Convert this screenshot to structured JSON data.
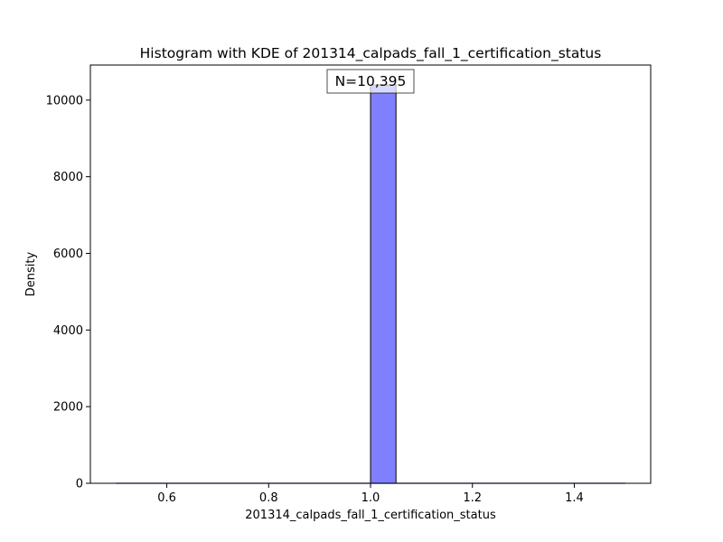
{
  "chart_data": {
    "type": "bar",
    "title": "Histogram with KDE of 201314_calpads_fall_1_certification_status",
    "xlabel": "201314_calpads_fall_1_certification_status",
    "ylabel": "Density",
    "xlim": [
      0.45,
      1.55
    ],
    "ylim": [
      0,
      10914.75
    ],
    "xticks": [
      0.6,
      0.8,
      1.0,
      1.2,
      1.4
    ],
    "xtick_labels": [
      "0.6",
      "0.8",
      "1.0",
      "1.2",
      "1.4"
    ],
    "yticks": [
      0,
      2000,
      4000,
      6000,
      8000,
      10000
    ],
    "ytick_labels": [
      "0",
      "2000",
      "4000",
      "6000",
      "8000",
      "10000"
    ],
    "bins": [
      {
        "x0": 0.5,
        "x1": 0.55,
        "value": 0
      },
      {
        "x0": 0.55,
        "x1": 0.6,
        "value": 0
      },
      {
        "x0": 0.6,
        "x1": 0.65,
        "value": 0
      },
      {
        "x0": 0.65,
        "x1": 0.7,
        "value": 0
      },
      {
        "x0": 0.7,
        "x1": 0.75,
        "value": 0
      },
      {
        "x0": 0.75,
        "x1": 0.8,
        "value": 0
      },
      {
        "x0": 0.8,
        "x1": 0.85,
        "value": 0
      },
      {
        "x0": 0.85,
        "x1": 0.9,
        "value": 0
      },
      {
        "x0": 0.9,
        "x1": 0.95,
        "value": 0
      },
      {
        "x0": 0.95,
        "x1": 1.0,
        "value": 0
      },
      {
        "x0": 1.0,
        "x1": 1.05,
        "value": 10395
      },
      {
        "x0": 1.05,
        "x1": 1.1,
        "value": 0
      },
      {
        "x0": 1.1,
        "x1": 1.15,
        "value": 0
      },
      {
        "x0": 1.15,
        "x1": 1.2,
        "value": 0
      },
      {
        "x0": 1.2,
        "x1": 1.25,
        "value": 0
      },
      {
        "x0": 1.25,
        "x1": 1.3,
        "value": 0
      },
      {
        "x0": 1.3,
        "x1": 1.35,
        "value": 0
      },
      {
        "x0": 1.35,
        "x1": 1.4,
        "value": 0
      },
      {
        "x0": 1.4,
        "x1": 1.45,
        "value": 0
      },
      {
        "x0": 1.45,
        "x1": 1.5,
        "value": 0
      }
    ],
    "bar_color": "#8080ff",
    "edge_color": "#000000",
    "annotation": {
      "text": "N=10,395",
      "x": 1.0,
      "y": 10395
    },
    "grid": false,
    "legend": "none"
  }
}
